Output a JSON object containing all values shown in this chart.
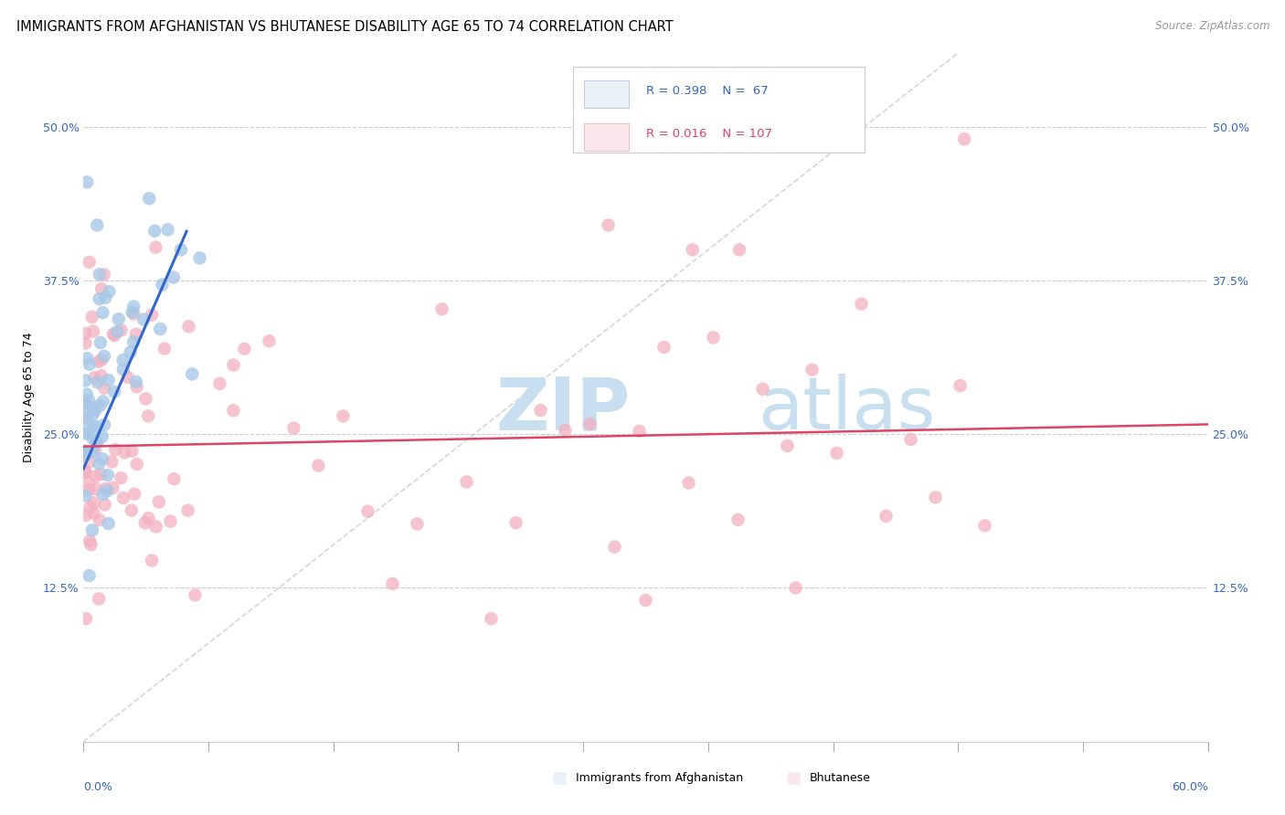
{
  "title": "IMMIGRANTS FROM AFGHANISTAN VS BHUTANESE DISABILITY AGE 65 TO 74 CORRELATION CHART",
  "source": "Source: ZipAtlas.com",
  "ylabel": "Disability Age 65 to 74",
  "ytick_labels": [
    "",
    "12.5%",
    "25.0%",
    "37.5%",
    "50.0%"
  ],
  "ytick_values": [
    0.0,
    0.125,
    0.25,
    0.375,
    0.5
  ],
  "xmin": 0.0,
  "xmax": 0.6,
  "ymin": 0.0,
  "ymax": 0.56,
  "scatter_color1": "#a8c8e8",
  "scatter_color2": "#f4b0c0",
  "trendline_color1": "#3366cc",
  "trendline_color2": "#dd4466",
  "legend_box_color": "#e8f0f8",
  "legend_box_color2": "#fce8ec",
  "watermark_zip_color": "#c8dff0",
  "watermark_atlas_color": "#c8dff0",
  "title_fontsize": 10.5,
  "source_fontsize": 8.5,
  "tick_fontsize": 9,
  "ylabel_fontsize": 9
}
